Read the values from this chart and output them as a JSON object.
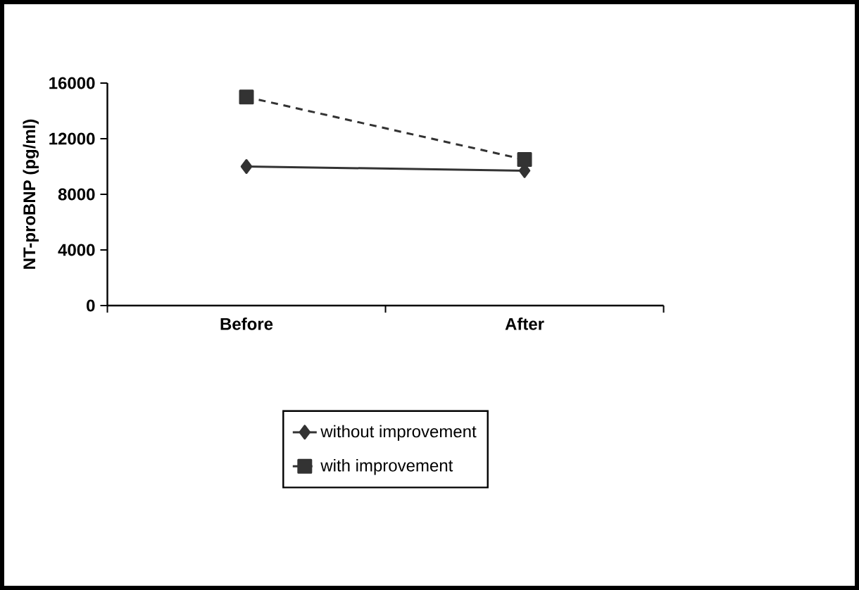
{
  "chart_data": {
    "type": "line",
    "ylabel": "NT-proBNP (pg/ml)",
    "categories": [
      "Before",
      "After"
    ],
    "series": [
      {
        "name": "without improvement",
        "color": "#333333",
        "values": [
          10000,
          9700
        ],
        "marker": "diamond",
        "line_style": "solid"
      },
      {
        "name": "with improvement",
        "color": "#333333",
        "values": [
          15000,
          10500
        ],
        "marker": "square",
        "line_style": "dashed"
      }
    ],
    "ylim": [
      0,
      16000
    ],
    "yticks": [
      0,
      4000,
      8000,
      12000,
      16000
    ],
    "grid": false,
    "legend": "bottom"
  }
}
